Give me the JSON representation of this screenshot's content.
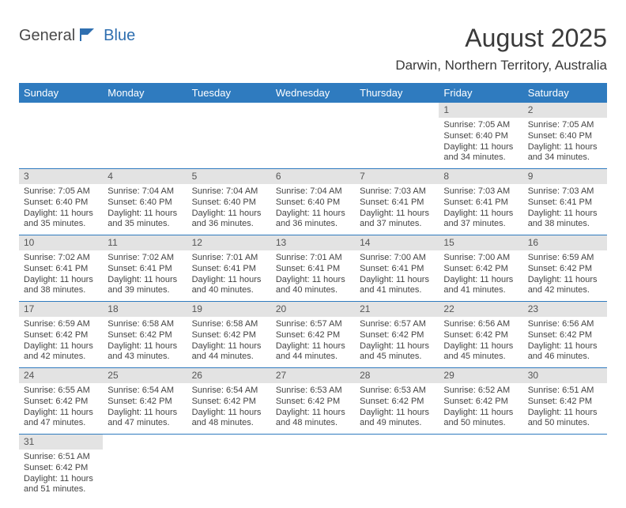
{
  "logo": {
    "part1": "General",
    "part2": "Blue"
  },
  "title": "August 2025",
  "location": "Darwin, Northern Territory, Australia",
  "colors": {
    "header_bg": "#2f7bbf",
    "header_text": "#ffffff",
    "daynum_bg": "#e3e3e3",
    "row_divider": "#2f7bbf",
    "logo_blue": "#2f6fb0",
    "body_text": "#3a3a3a"
  },
  "day_headers": [
    "Sunday",
    "Monday",
    "Tuesday",
    "Wednesday",
    "Thursday",
    "Friday",
    "Saturday"
  ],
  "weeks": [
    [
      {
        "empty": true
      },
      {
        "empty": true
      },
      {
        "empty": true
      },
      {
        "empty": true
      },
      {
        "empty": true
      },
      {
        "num": "1",
        "sunrise": "Sunrise: 7:05 AM",
        "sunset": "Sunset: 6:40 PM",
        "day1": "Daylight: 11 hours",
        "day2": "and 34 minutes."
      },
      {
        "num": "2",
        "sunrise": "Sunrise: 7:05 AM",
        "sunset": "Sunset: 6:40 PM",
        "day1": "Daylight: 11 hours",
        "day2": "and 34 minutes."
      }
    ],
    [
      {
        "num": "3",
        "sunrise": "Sunrise: 7:05 AM",
        "sunset": "Sunset: 6:40 PM",
        "day1": "Daylight: 11 hours",
        "day2": "and 35 minutes."
      },
      {
        "num": "4",
        "sunrise": "Sunrise: 7:04 AM",
        "sunset": "Sunset: 6:40 PM",
        "day1": "Daylight: 11 hours",
        "day2": "and 35 minutes."
      },
      {
        "num": "5",
        "sunrise": "Sunrise: 7:04 AM",
        "sunset": "Sunset: 6:40 PM",
        "day1": "Daylight: 11 hours",
        "day2": "and 36 minutes."
      },
      {
        "num": "6",
        "sunrise": "Sunrise: 7:04 AM",
        "sunset": "Sunset: 6:40 PM",
        "day1": "Daylight: 11 hours",
        "day2": "and 36 minutes."
      },
      {
        "num": "7",
        "sunrise": "Sunrise: 7:03 AM",
        "sunset": "Sunset: 6:41 PM",
        "day1": "Daylight: 11 hours",
        "day2": "and 37 minutes."
      },
      {
        "num": "8",
        "sunrise": "Sunrise: 7:03 AM",
        "sunset": "Sunset: 6:41 PM",
        "day1": "Daylight: 11 hours",
        "day2": "and 37 minutes."
      },
      {
        "num": "9",
        "sunrise": "Sunrise: 7:03 AM",
        "sunset": "Sunset: 6:41 PM",
        "day1": "Daylight: 11 hours",
        "day2": "and 38 minutes."
      }
    ],
    [
      {
        "num": "10",
        "sunrise": "Sunrise: 7:02 AM",
        "sunset": "Sunset: 6:41 PM",
        "day1": "Daylight: 11 hours",
        "day2": "and 38 minutes."
      },
      {
        "num": "11",
        "sunrise": "Sunrise: 7:02 AM",
        "sunset": "Sunset: 6:41 PM",
        "day1": "Daylight: 11 hours",
        "day2": "and 39 minutes."
      },
      {
        "num": "12",
        "sunrise": "Sunrise: 7:01 AM",
        "sunset": "Sunset: 6:41 PM",
        "day1": "Daylight: 11 hours",
        "day2": "and 40 minutes."
      },
      {
        "num": "13",
        "sunrise": "Sunrise: 7:01 AM",
        "sunset": "Sunset: 6:41 PM",
        "day1": "Daylight: 11 hours",
        "day2": "and 40 minutes."
      },
      {
        "num": "14",
        "sunrise": "Sunrise: 7:00 AM",
        "sunset": "Sunset: 6:41 PM",
        "day1": "Daylight: 11 hours",
        "day2": "and 41 minutes."
      },
      {
        "num": "15",
        "sunrise": "Sunrise: 7:00 AM",
        "sunset": "Sunset: 6:42 PM",
        "day1": "Daylight: 11 hours",
        "day2": "and 41 minutes."
      },
      {
        "num": "16",
        "sunrise": "Sunrise: 6:59 AM",
        "sunset": "Sunset: 6:42 PM",
        "day1": "Daylight: 11 hours",
        "day2": "and 42 minutes."
      }
    ],
    [
      {
        "num": "17",
        "sunrise": "Sunrise: 6:59 AM",
        "sunset": "Sunset: 6:42 PM",
        "day1": "Daylight: 11 hours",
        "day2": "and 42 minutes."
      },
      {
        "num": "18",
        "sunrise": "Sunrise: 6:58 AM",
        "sunset": "Sunset: 6:42 PM",
        "day1": "Daylight: 11 hours",
        "day2": "and 43 minutes."
      },
      {
        "num": "19",
        "sunrise": "Sunrise: 6:58 AM",
        "sunset": "Sunset: 6:42 PM",
        "day1": "Daylight: 11 hours",
        "day2": "and 44 minutes."
      },
      {
        "num": "20",
        "sunrise": "Sunrise: 6:57 AM",
        "sunset": "Sunset: 6:42 PM",
        "day1": "Daylight: 11 hours",
        "day2": "and 44 minutes."
      },
      {
        "num": "21",
        "sunrise": "Sunrise: 6:57 AM",
        "sunset": "Sunset: 6:42 PM",
        "day1": "Daylight: 11 hours",
        "day2": "and 45 minutes."
      },
      {
        "num": "22",
        "sunrise": "Sunrise: 6:56 AM",
        "sunset": "Sunset: 6:42 PM",
        "day1": "Daylight: 11 hours",
        "day2": "and 45 minutes."
      },
      {
        "num": "23",
        "sunrise": "Sunrise: 6:56 AM",
        "sunset": "Sunset: 6:42 PM",
        "day1": "Daylight: 11 hours",
        "day2": "and 46 minutes."
      }
    ],
    [
      {
        "num": "24",
        "sunrise": "Sunrise: 6:55 AM",
        "sunset": "Sunset: 6:42 PM",
        "day1": "Daylight: 11 hours",
        "day2": "and 47 minutes."
      },
      {
        "num": "25",
        "sunrise": "Sunrise: 6:54 AM",
        "sunset": "Sunset: 6:42 PM",
        "day1": "Daylight: 11 hours",
        "day2": "and 47 minutes."
      },
      {
        "num": "26",
        "sunrise": "Sunrise: 6:54 AM",
        "sunset": "Sunset: 6:42 PM",
        "day1": "Daylight: 11 hours",
        "day2": "and 48 minutes."
      },
      {
        "num": "27",
        "sunrise": "Sunrise: 6:53 AM",
        "sunset": "Sunset: 6:42 PM",
        "day1": "Daylight: 11 hours",
        "day2": "and 48 minutes."
      },
      {
        "num": "28",
        "sunrise": "Sunrise: 6:53 AM",
        "sunset": "Sunset: 6:42 PM",
        "day1": "Daylight: 11 hours",
        "day2": "and 49 minutes."
      },
      {
        "num": "29",
        "sunrise": "Sunrise: 6:52 AM",
        "sunset": "Sunset: 6:42 PM",
        "day1": "Daylight: 11 hours",
        "day2": "and 50 minutes."
      },
      {
        "num": "30",
        "sunrise": "Sunrise: 6:51 AM",
        "sunset": "Sunset: 6:42 PM",
        "day1": "Daylight: 11 hours",
        "day2": "and 50 minutes."
      }
    ],
    [
      {
        "num": "31",
        "sunrise": "Sunrise: 6:51 AM",
        "sunset": "Sunset: 6:42 PM",
        "day1": "Daylight: 11 hours",
        "day2": "and 51 minutes."
      },
      {
        "empty": true
      },
      {
        "empty": true
      },
      {
        "empty": true
      },
      {
        "empty": true
      },
      {
        "empty": true
      },
      {
        "empty": true
      }
    ]
  ]
}
